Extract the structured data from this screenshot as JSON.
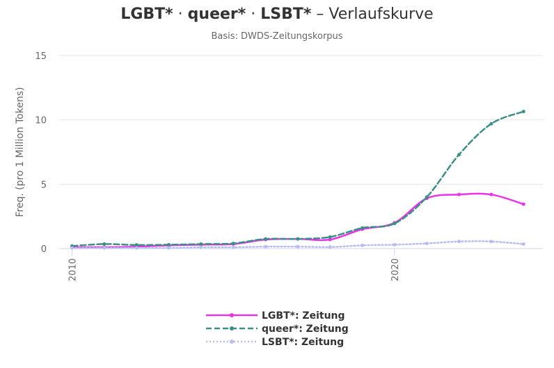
{
  "chart_data": {
    "type": "line",
    "title_parts": [
      "LGBT*",
      " · ",
      "queer*",
      " · ",
      "LSBT*",
      " – Verlaufskurve"
    ],
    "subtitle": "Basis: DWDS-Zeitungskorpus",
    "ylabel": "Freq. (pro 1 Million Tokens)",
    "xlabel": "",
    "x": [
      2010,
      2011,
      2012,
      2013,
      2014,
      2015,
      2016,
      2017,
      2018,
      2019,
      2020,
      2021,
      2022,
      2023,
      2024
    ],
    "x_ticks": [
      2010,
      2020
    ],
    "y_ticks": [
      0,
      5,
      10,
      15
    ],
    "ylim": [
      0,
      15
    ],
    "xlim": [
      2009.6,
      2024.6
    ],
    "grid": true,
    "legend_position": "bottom-center",
    "series": [
      {
        "name": "LGBT*: Zeitung",
        "color": "#e833e8",
        "dash": "solid",
        "values": [
          0.1,
          0.1,
          0.15,
          0.25,
          0.3,
          0.35,
          0.7,
          0.75,
          0.7,
          1.5,
          2.0,
          3.9,
          4.2,
          4.2,
          3.45
        ]
      },
      {
        "name": "queer*: Zeitung",
        "color": "#3a8f86",
        "dash": "dashed",
        "values": [
          0.2,
          0.35,
          0.28,
          0.3,
          0.35,
          0.4,
          0.75,
          0.75,
          0.9,
          1.6,
          1.95,
          4.0,
          7.3,
          9.7,
          10.65
        ]
      },
      {
        "name": "LSBT*: Zeitung",
        "color": "#b8bdf0",
        "dash": "dotted",
        "values": [
          0.05,
          0.05,
          0.05,
          0.05,
          0.1,
          0.1,
          0.15,
          0.15,
          0.12,
          0.25,
          0.3,
          0.4,
          0.55,
          0.55,
          0.35
        ]
      }
    ]
  }
}
